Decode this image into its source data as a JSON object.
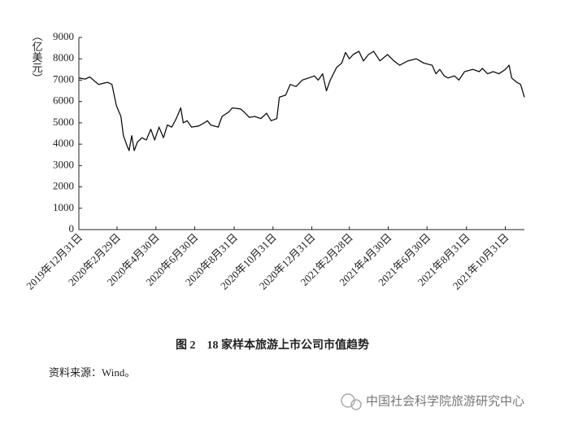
{
  "chart_data": {
    "type": "line",
    "title": "图 2　18 家样本旅游上市公司市值趋势",
    "y_label": "（亿美元）",
    "source": "资料来源：Wind。",
    "watermark": "中国社会科学院旅游研究中心",
    "color": "#111111",
    "x": [
      "2019-12-31",
      "2020-01-10",
      "2020-01-17",
      "2020-01-31",
      "2020-02-14",
      "2020-02-21",
      "2020-02-28",
      "2020-03-06",
      "2020-03-10",
      "2020-03-16",
      "2020-03-19",
      "2020-03-23",
      "2020-03-27",
      "2020-04-01",
      "2020-04-08",
      "2020-04-15",
      "2020-04-22",
      "2020-04-28",
      "2020-05-05",
      "2020-05-12",
      "2020-05-18",
      "2020-05-25",
      "2020-06-01",
      "2020-06-08",
      "2020-06-12",
      "2020-06-18",
      "2020-06-25",
      "2020-07-06",
      "2020-07-15",
      "2020-07-20",
      "2020-07-25",
      "2020-08-06",
      "2020-08-12",
      "2020-08-22",
      "2020-08-28",
      "2020-09-10",
      "2020-09-16",
      "2020-09-24",
      "2020-10-02",
      "2020-10-12",
      "2020-10-21",
      "2020-10-28",
      "2020-11-06",
      "2020-11-10",
      "2020-11-20",
      "2020-11-27",
      "2020-12-06",
      "2020-12-16",
      "2020-12-26",
      "2021-01-04",
      "2021-01-10",
      "2021-01-17",
      "2021-01-23",
      "2021-01-29",
      "2021-02-08",
      "2021-02-16",
      "2021-02-22",
      "2021-02-28",
      "2021-03-06",
      "2021-03-15",
      "2021-03-22",
      "2021-03-30",
      "2021-04-07",
      "2021-04-17",
      "2021-04-29",
      "2021-05-09",
      "2021-05-18",
      "2021-05-31",
      "2021-06-13",
      "2021-06-25",
      "2021-07-08",
      "2021-07-14",
      "2021-07-20",
      "2021-07-27",
      "2021-08-02",
      "2021-08-12",
      "2021-08-19",
      "2021-08-28",
      "2021-09-10",
      "2021-09-20",
      "2021-09-25",
      "2021-10-03",
      "2021-10-12",
      "2021-10-21",
      "2021-10-31",
      "2021-11-06",
      "2021-11-10",
      "2021-11-18",
      "2021-11-24",
      "2021-11-30"
    ],
    "values": [
      7100,
      7050,
      7150,
      6800,
      6900,
      6800,
      5800,
      5300,
      4400,
      3900,
      3700,
      4400,
      3700,
      4100,
      4300,
      4200,
      4700,
      4200,
      4800,
      4300,
      4900,
      4800,
      5200,
      5700,
      5000,
      5100,
      4800,
      4850,
      5000,
      5100,
      4900,
      4800,
      5300,
      5500,
      5700,
      5650,
      5500,
      5250,
      5300,
      5200,
      5450,
      5100,
      5200,
      6200,
      6300,
      6800,
      6700,
      7000,
      7100,
      7200,
      7000,
      7300,
      6500,
      7000,
      7600,
      7800,
      8300,
      8000,
      8200,
      8350,
      7900,
      8200,
      8350,
      7900,
      8200,
      7900,
      7700,
      7900,
      8000,
      7800,
      7700,
      7300,
      7500,
      7200,
      7100,
      7200,
      7000,
      7400,
      7500,
      7400,
      7550,
      7300,
      7400,
      7300,
      7500,
      7700,
      7100,
      6900,
      6800,
      6200
    ],
    "xlim": [
      "2019-12-31",
      "2021-11-30"
    ],
    "xticks": [
      {
        "value": "2019-12-31",
        "label": "2019年12月31日"
      },
      {
        "value": "2020-02-29",
        "label": "2020年2月29日"
      },
      {
        "value": "2020-04-30",
        "label": "2020年4月30日"
      },
      {
        "value": "2020-06-30",
        "label": "2020年6月30日"
      },
      {
        "value": "2020-08-31",
        "label": "2020年8月31日"
      },
      {
        "value": "2020-10-31",
        "label": "2020年10月31日"
      },
      {
        "value": "2020-12-31",
        "label": "2020年12月31日"
      },
      {
        "value": "2021-02-28",
        "label": "2021年2月28日"
      },
      {
        "value": "2021-04-30",
        "label": "2021年4月30日"
      },
      {
        "value": "2021-06-30",
        "label": "2021年6月30日"
      },
      {
        "value": "2021-08-31",
        "label": "2021年8月31日"
      },
      {
        "value": "2021-10-31",
        "label": "2021年10月31日"
      }
    ],
    "ylim": [
      0,
      9000
    ],
    "yticks": [
      0,
      1000,
      2000,
      3000,
      4000,
      5000,
      6000,
      7000,
      8000,
      9000
    ]
  }
}
